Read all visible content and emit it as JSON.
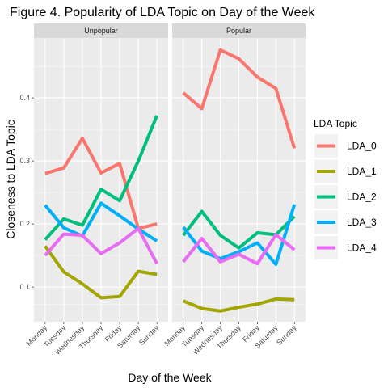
{
  "chart_data": {
    "type": "line",
    "title": "Figure 4. Popularity of LDA Topic on Day of the Week",
    "xlabel": "Day of the Week",
    "ylabel": "Closeness to LDA Topic",
    "categories": [
      "Monday",
      "Tuesday",
      "Wednesday",
      "Thursday",
      "Friday",
      "Saturday",
      "Sunday"
    ],
    "yticks": [
      0.1,
      0.2,
      0.3,
      0.4
    ],
    "ytick_labels": [
      "0.1",
      "0.2",
      "0.3",
      "0.4"
    ],
    "ylim": [
      0.045,
      0.495
    ],
    "grid": true,
    "legend": {
      "title": "LDA Topic",
      "position": "right",
      "entries": [
        "LDA_0",
        "LDA_1",
        "LDA_2",
        "LDA_3",
        "LDA_4"
      ]
    },
    "facets": [
      {
        "label": "Unpopular",
        "series": [
          {
            "name": "LDA_0",
            "color": "#F8766D",
            "values": [
              0.28,
              0.289,
              0.336,
              0.281,
              0.296,
              0.193,
              0.2
            ]
          },
          {
            "name": "LDA_1",
            "color": "#A3A500",
            "values": [
              0.165,
              0.124,
              0.105,
              0.083,
              0.085,
              0.125,
              0.12
            ]
          },
          {
            "name": "LDA_2",
            "color": "#00BF7D",
            "values": [
              0.175,
              0.208,
              0.198,
              0.255,
              0.237,
              0.3,
              0.372
            ]
          },
          {
            "name": "LDA_3",
            "color": "#00B0F6",
            "values": [
              0.23,
              0.194,
              0.181,
              0.233,
              0.213,
              0.192,
              0.173
            ]
          },
          {
            "name": "LDA_4",
            "color": "#E76BF3",
            "values": [
              0.15,
              0.184,
              0.182,
              0.153,
              0.17,
              0.193,
              0.137
            ]
          }
        ]
      },
      {
        "label": "Popular",
        "series": [
          {
            "name": "LDA_0",
            "color": "#F8766D",
            "values": [
              0.408,
              0.383,
              0.476,
              0.462,
              0.433,
              0.415,
              0.32
            ]
          },
          {
            "name": "LDA_1",
            "color": "#A3A500",
            "values": [
              0.078,
              0.066,
              0.062,
              0.068,
              0.073,
              0.081,
              0.08
            ]
          },
          {
            "name": "LDA_2",
            "color": "#00BF7D",
            "values": [
              0.182,
              0.22,
              0.182,
              0.162,
              0.186,
              0.183,
              0.212
            ]
          },
          {
            "name": "LDA_3",
            "color": "#00B0F6",
            "values": [
              0.195,
              0.157,
              0.145,
              0.156,
              0.17,
              0.136,
              0.231
            ]
          },
          {
            "name": "LDA_4",
            "color": "#E76BF3",
            "values": [
              0.14,
              0.177,
              0.14,
              0.152,
              0.137,
              0.183,
              0.159
            ]
          }
        ]
      }
    ]
  }
}
